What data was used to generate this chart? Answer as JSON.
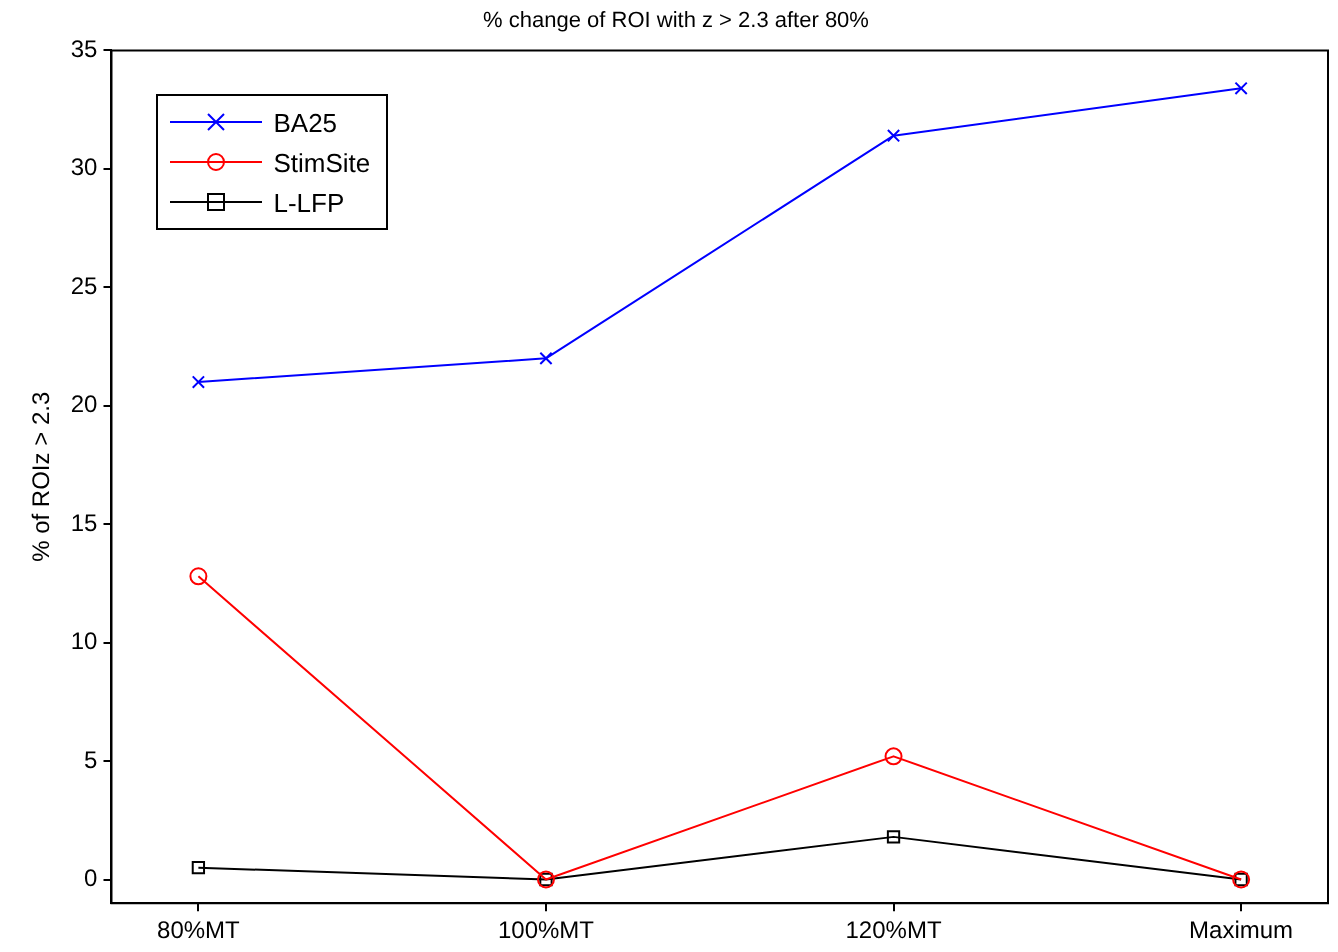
{
  "chart_data": {
    "type": "line",
    "title": "% change of ROI with z > 2.3 after 80%",
    "ylabel": "% of ROIz > 2.3",
    "categories": [
      "80%MT",
      "100%MT",
      "120%MT",
      "Maximum"
    ],
    "series": [
      {
        "name": "BA25",
        "color": "#0000ff",
        "marker": "cross",
        "values": [
          21,
          22,
          31.4,
          33.4
        ]
      },
      {
        "name": "StimSite",
        "color": "#ff0000",
        "marker": "circle",
        "values": [
          12.8,
          0,
          5.2,
          0
        ]
      },
      {
        "name": "L-LFP",
        "color": "#000000",
        "marker": "square",
        "values": [
          0.5,
          0,
          1.8,
          0
        ]
      }
    ],
    "ylim": [
      -1,
      35
    ],
    "yticks": [
      0,
      5,
      10,
      15,
      20,
      25,
      30,
      35
    ],
    "grid": false,
    "legend": "top left",
    "line_style": "solid"
  }
}
